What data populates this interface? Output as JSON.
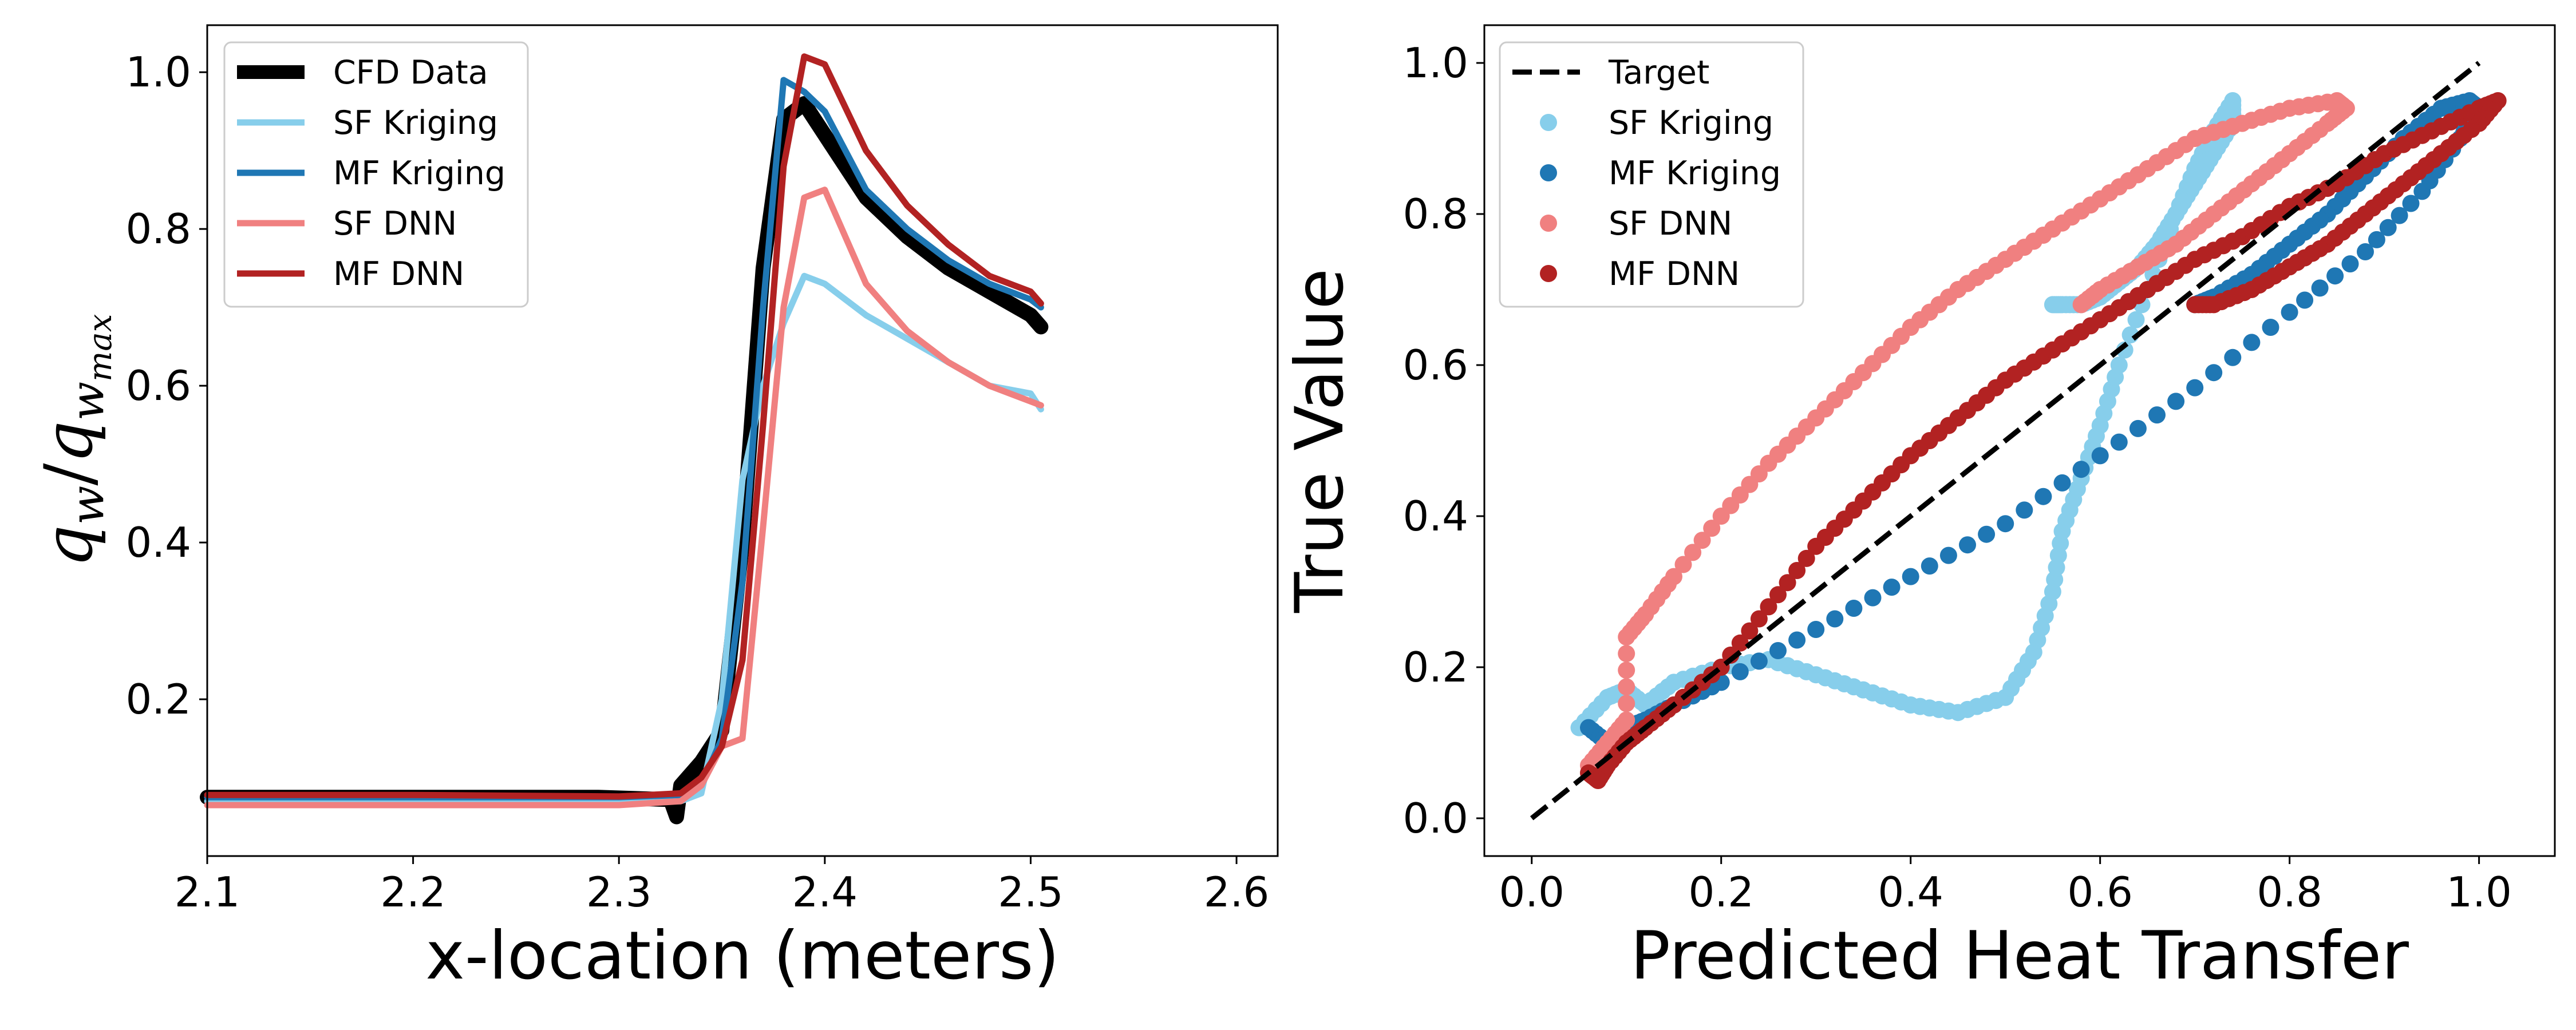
{
  "chart_data": [
    {
      "type": "line",
      "xlabel": "x-location (meters)",
      "ylabel": "qw/qwmax",
      "ylabel_parts": {
        "base": "q",
        "sub1": "w",
        "slash": "/",
        "sub2": "w",
        "subsub": "max"
      },
      "xlim": [
        2.1,
        2.62
      ],
      "ylim": [
        0.0,
        1.06
      ],
      "xticks": [
        "2.1",
        "2.2",
        "2.3",
        "2.4",
        "2.5",
        "2.6"
      ],
      "yticks": [
        "0.2",
        "0.4",
        "0.6",
        "0.8",
        "1.0"
      ],
      "xtick_values": [
        2.1,
        2.2,
        2.3,
        2.4,
        2.5,
        2.6
      ],
      "ytick_values": [
        0.2,
        0.4,
        0.6,
        0.8,
        1.0
      ],
      "legend_position": "top-left",
      "series": [
        {
          "name": "CFD Data",
          "color": "#000000",
          "x": [
            2.1,
            2.2,
            2.29,
            2.325,
            2.328,
            2.33,
            2.34,
            2.35,
            2.36,
            2.37,
            2.38,
            2.39,
            2.4,
            2.42,
            2.44,
            2.46,
            2.48,
            2.5,
            2.505
          ],
          "y": [
            0.075,
            0.075,
            0.075,
            0.072,
            0.05,
            0.09,
            0.12,
            0.16,
            0.4,
            0.75,
            0.94,
            0.96,
            0.92,
            0.84,
            0.79,
            0.75,
            0.72,
            0.69,
            0.675
          ]
        },
        {
          "name": "SF Kriging",
          "color": "#87ceeb",
          "x": [
            2.1,
            2.2,
            2.3,
            2.33,
            2.34,
            2.35,
            2.36,
            2.37,
            2.38,
            2.39,
            2.4,
            2.42,
            2.44,
            2.46,
            2.48,
            2.5,
            2.505
          ],
          "y": [
            0.07,
            0.07,
            0.07,
            0.07,
            0.08,
            0.2,
            0.48,
            0.6,
            0.68,
            0.74,
            0.73,
            0.69,
            0.66,
            0.63,
            0.6,
            0.59,
            0.57
          ]
        },
        {
          "name": "MF Kriging",
          "color": "#1f77b4",
          "x": [
            2.1,
            2.2,
            2.3,
            2.33,
            2.34,
            2.35,
            2.36,
            2.37,
            2.38,
            2.39,
            2.4,
            2.42,
            2.44,
            2.46,
            2.48,
            2.5,
            2.505
          ],
          "y": [
            0.075,
            0.075,
            0.075,
            0.078,
            0.09,
            0.15,
            0.35,
            0.7,
            0.99,
            0.975,
            0.95,
            0.85,
            0.8,
            0.76,
            0.73,
            0.71,
            0.7
          ]
        },
        {
          "name": "SF DNN",
          "color": "#f08080",
          "x": [
            2.1,
            2.2,
            2.3,
            2.33,
            2.34,
            2.35,
            2.36,
            2.37,
            2.38,
            2.39,
            2.4,
            2.42,
            2.44,
            2.46,
            2.48,
            2.5,
            2.505
          ],
          "y": [
            0.065,
            0.065,
            0.065,
            0.07,
            0.09,
            0.14,
            0.15,
            0.42,
            0.7,
            0.84,
            0.85,
            0.73,
            0.67,
            0.63,
            0.6,
            0.58,
            0.575
          ]
        },
        {
          "name": "MF DNN",
          "color": "#b22222",
          "x": [
            2.1,
            2.2,
            2.3,
            2.33,
            2.34,
            2.35,
            2.36,
            2.37,
            2.38,
            2.39,
            2.4,
            2.42,
            2.44,
            2.46,
            2.48,
            2.5,
            2.505
          ],
          "y": [
            0.078,
            0.078,
            0.076,
            0.08,
            0.1,
            0.14,
            0.25,
            0.55,
            0.88,
            1.02,
            1.01,
            0.9,
            0.83,
            0.78,
            0.74,
            0.72,
            0.705
          ]
        }
      ]
    },
    {
      "type": "scatter",
      "xlabel": "Predicted Heat Transfer",
      "ylabel": "True Value",
      "xlim": [
        -0.05,
        1.08
      ],
      "ylim": [
        -0.05,
        1.05
      ],
      "xticks": [
        "0.0",
        "0.2",
        "0.4",
        "0.6",
        "0.8",
        "1.0"
      ],
      "yticks": [
        "0.0",
        "0.2",
        "0.4",
        "0.6",
        "0.8",
        "1.0"
      ],
      "xtick_values": [
        0,
        0.2,
        0.4,
        0.6,
        0.8,
        1.0
      ],
      "ytick_values": [
        0,
        0.2,
        0.4,
        0.6,
        0.8,
        1.0
      ],
      "legend_position": "top-left",
      "target": {
        "name": "Target",
        "color": "#000000",
        "x": [
          0,
          1
        ],
        "y": [
          0,
          1
        ]
      },
      "series": [
        {
          "name": "SF Kriging",
          "color": "#87ceeb",
          "x": [
            0.05,
            0.08,
            0.1,
            0.12,
            0.15,
            0.2,
            0.25,
            0.3,
            0.35,
            0.4,
            0.45,
            0.5,
            0.53,
            0.55,
            0.56,
            0.58,
            0.6,
            0.62,
            0.65,
            0.68,
            0.7,
            0.72,
            0.74,
            0.74,
            0.72,
            0.7,
            0.68,
            0.66,
            0.64,
            0.62,
            0.6,
            0.58,
            0.56,
            0.55
          ],
          "y": [
            0.12,
            0.16,
            0.17,
            0.15,
            0.18,
            0.2,
            0.21,
            0.19,
            0.17,
            0.15,
            0.14,
            0.16,
            0.22,
            0.3,
            0.38,
            0.45,
            0.52,
            0.6,
            0.7,
            0.8,
            0.86,
            0.91,
            0.95,
            0.92,
            0.88,
            0.84,
            0.8,
            0.76,
            0.73,
            0.71,
            0.69,
            0.68,
            0.68,
            0.68
          ]
        },
        {
          "name": "MF Kriging",
          "color": "#1f77b4",
          "x": [
            0.06,
            0.08,
            0.1,
            0.12,
            0.15,
            0.2,
            0.3,
            0.4,
            0.5,
            0.6,
            0.7,
            0.8,
            0.88,
            0.94,
            0.98,
            1.0,
            0.99,
            0.96,
            0.92,
            0.88,
            0.84,
            0.8,
            0.76,
            0.72,
            0.7
          ],
          "y": [
            0.12,
            0.1,
            0.12,
            0.13,
            0.15,
            0.18,
            0.25,
            0.32,
            0.39,
            0.48,
            0.57,
            0.67,
            0.75,
            0.83,
            0.9,
            0.94,
            0.95,
            0.94,
            0.9,
            0.85,
            0.8,
            0.76,
            0.72,
            0.69,
            0.68
          ]
        },
        {
          "name": "SF DNN",
          "color": "#f08080",
          "x": [
            0.06,
            0.08,
            0.1,
            0.1,
            0.12,
            0.15,
            0.2,
            0.25,
            0.3,
            0.35,
            0.4,
            0.45,
            0.5,
            0.55,
            0.6,
            0.65,
            0.7,
            0.75,
            0.8,
            0.85,
            0.86,
            0.84,
            0.8,
            0.76,
            0.72,
            0.68,
            0.64,
            0.6,
            0.58
          ],
          "y": [
            0.07,
            0.1,
            0.13,
            0.24,
            0.27,
            0.32,
            0.4,
            0.47,
            0.53,
            0.59,
            0.65,
            0.7,
            0.74,
            0.78,
            0.82,
            0.86,
            0.9,
            0.92,
            0.94,
            0.95,
            0.94,
            0.92,
            0.88,
            0.84,
            0.8,
            0.76,
            0.73,
            0.7,
            0.68
          ]
        },
        {
          "name": "MF DNN",
          "color": "#b22222",
          "x": [
            0.06,
            0.07,
            0.08,
            0.1,
            0.12,
            0.15,
            0.2,
            0.25,
            0.3,
            0.35,
            0.4,
            0.45,
            0.5,
            0.55,
            0.6,
            0.65,
            0.7,
            0.75,
            0.8,
            0.85,
            0.9,
            0.95,
            1.0,
            1.02,
            1.0,
            0.96,
            0.92,
            0.88,
            0.84,
            0.8,
            0.76,
            0.72,
            0.7
          ],
          "y": [
            0.06,
            0.05,
            0.07,
            0.1,
            0.12,
            0.15,
            0.2,
            0.28,
            0.36,
            0.42,
            0.48,
            0.53,
            0.58,
            0.62,
            0.66,
            0.7,
            0.74,
            0.77,
            0.81,
            0.84,
            0.88,
            0.91,
            0.94,
            0.95,
            0.92,
            0.88,
            0.84,
            0.8,
            0.76,
            0.73,
            0.7,
            0.68,
            0.68
          ]
        }
      ]
    }
  ]
}
